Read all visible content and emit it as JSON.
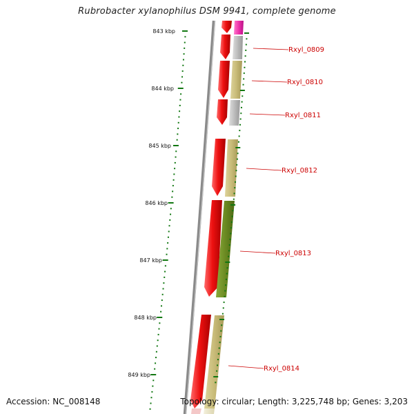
{
  "genome_title": "Rubrobacter xylanophilus DSM 9941, complete genome",
  "accession": "Accession: NC_008148",
  "genome_stats": "Topology: circular; Length: 3,225,748 bp; Genes: 3,203",
  "scale_ticks": [
    "843 kbp",
    "844 kbp",
    "845 kbp",
    "846 kbp",
    "847 kbp",
    "848 kbp",
    "849 kbp"
  ],
  "genes": [
    {
      "label": "Rxyl_0809"
    },
    {
      "label": "Rxyl_0810"
    },
    {
      "label": "Rxyl_0811"
    },
    {
      "label": "Rxyl_0812"
    },
    {
      "label": "Rxyl_0813"
    },
    {
      "label": "Rxyl_0814"
    }
  ],
  "colors": {
    "backbone": "#8a8a8a",
    "cds": "#ee1111",
    "scale": "#117711",
    "label": "#cc0000",
    "pink": "#ee33aa",
    "gray_band": "#bbbbbb",
    "khaki_band": "#c8bb78",
    "olive_band": "#6b8a22"
  }
}
